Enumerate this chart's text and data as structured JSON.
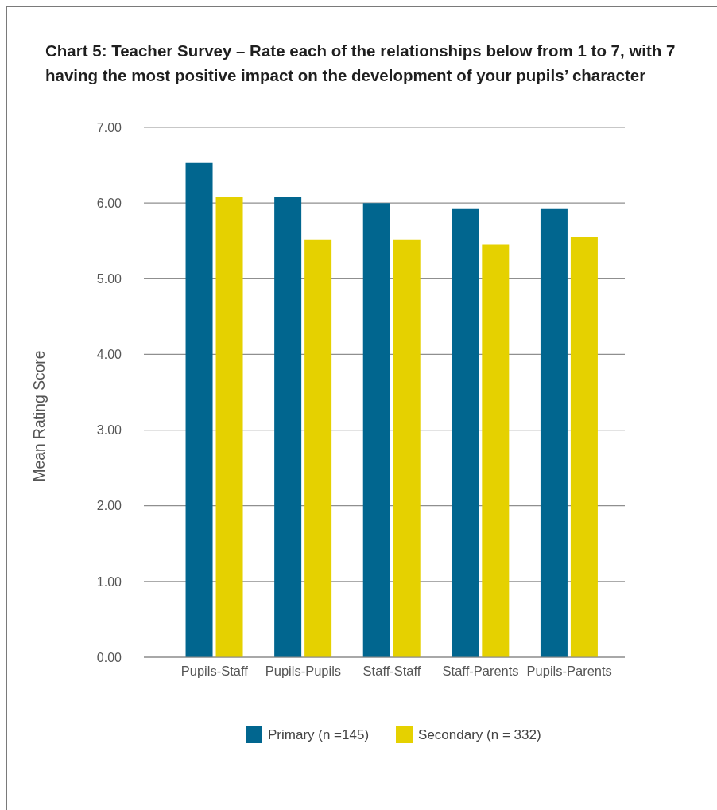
{
  "chart_data": {
    "type": "bar",
    "title": "Chart 5: Teacher Survey – Rate each of the relationships below from 1 to 7, with 7 having the most positive impact on the development of your pupils’ character",
    "ylabel": "Mean Rating Score",
    "categories": [
      "Pupils-Staff",
      "Pupils-Pupils",
      "Staff-Staff",
      "Staff-Parents",
      "Pupils-Parents"
    ],
    "series": [
      {
        "name": "Primary (n =145)",
        "color": "#01668f",
        "values": [
          6.53,
          6.08,
          6.0,
          5.92,
          5.92
        ]
      },
      {
        "name": "Secondary (n = 332)",
        "color": "#e5d100",
        "values": [
          6.08,
          5.51,
          5.51,
          5.45,
          5.55
        ]
      }
    ],
    "ylim": [
      0,
      7
    ],
    "yticks": [
      {
        "value": 0,
        "label": "0.00"
      },
      {
        "value": 1,
        "label": "1.00"
      },
      {
        "value": 2,
        "label": "2.00"
      },
      {
        "value": 3,
        "label": "3.00"
      },
      {
        "value": 4,
        "label": "4.00"
      },
      {
        "value": 5,
        "label": "5.00"
      },
      {
        "value": 6,
        "label": "6.00"
      },
      {
        "value": 7,
        "label": "7.00"
      }
    ],
    "grid": "y",
    "legend": "bottom"
  }
}
